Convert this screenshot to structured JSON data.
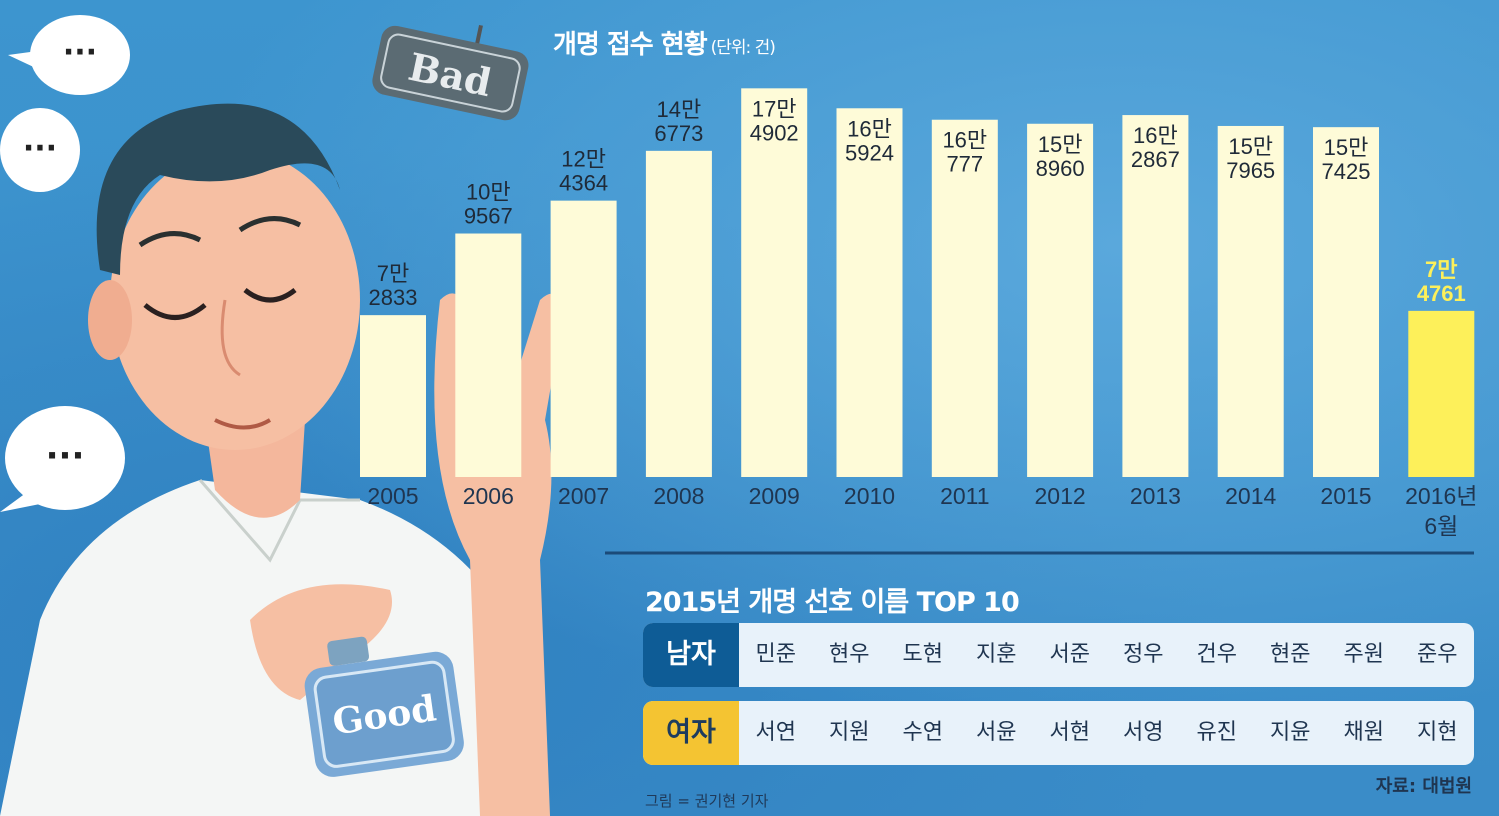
{
  "chart_data": {
    "type": "bar",
    "title": "개명 접수 현황",
    "unit": "(단위: 건)",
    "categories": [
      [
        "2005"
      ],
      [
        "2006"
      ],
      [
        "2007"
      ],
      [
        "2008"
      ],
      [
        "2009"
      ],
      [
        "2010"
      ],
      [
        "2011"
      ],
      [
        "2012"
      ],
      [
        "2013"
      ],
      [
        "2014"
      ],
      [
        "2015"
      ],
      [
        "2016년",
        "6월"
      ]
    ],
    "values": [
      72833,
      109567,
      124364,
      146773,
      174902,
      165924,
      160777,
      158960,
      162867,
      157965,
      157425,
      74761
    ],
    "value_labels": [
      [
        "7만",
        "2833"
      ],
      [
        "10만",
        "9567"
      ],
      [
        "12만",
        "4364"
      ],
      [
        "14만",
        "6773"
      ],
      [
        "17만",
        "4902"
      ],
      [
        "16만",
        "5924"
      ],
      [
        "16만",
        "777"
      ],
      [
        "15만",
        "8960"
      ],
      [
        "16만",
        "2867"
      ],
      [
        "15만",
        "7965"
      ],
      [
        "15만",
        "7425"
      ],
      [
        "7만",
        "4761"
      ]
    ],
    "ylim": [
      0,
      180000
    ],
    "highlight_index": 11,
    "colors": {
      "bar": "#fefbd8",
      "highlight": "#fdf05a",
      "label": "#1f2a38",
      "highlight_label": "#fdf05a",
      "tick": "#1f3550"
    }
  },
  "top10": {
    "title": "2015년 개명 선호 이름 TOP 10",
    "male": {
      "label": "남자",
      "names": [
        "민준",
        "현우",
        "도현",
        "지훈",
        "서준",
        "정우",
        "건우",
        "현준",
        "주원",
        "준우"
      ]
    },
    "female": {
      "label": "여자",
      "names": [
        "서연",
        "지원",
        "수연",
        "서윤",
        "서현",
        "서영",
        "유진",
        "지윤",
        "채원",
        "지현"
      ]
    }
  },
  "illustration": {
    "sign_bad": "Bad",
    "tag_good": "Good",
    "speech_bubble_text": "···"
  },
  "source": "자료: 대법원",
  "credit": "그림 = 권기현 기자"
}
